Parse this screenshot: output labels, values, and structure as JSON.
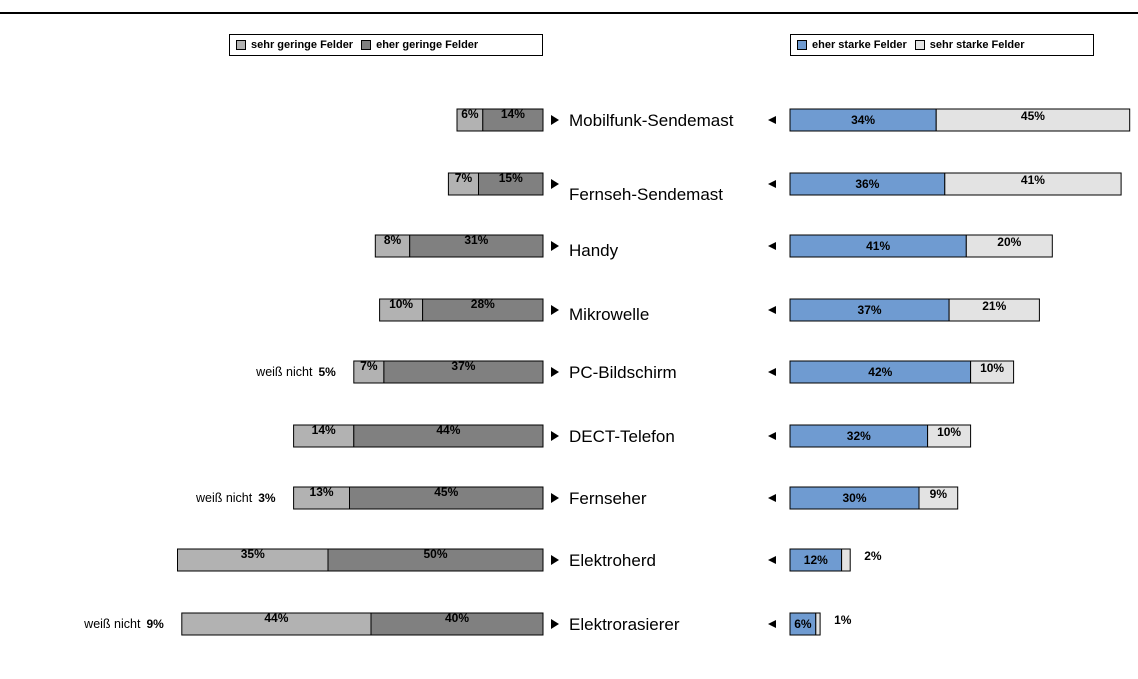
{
  "chart_data": {
    "type": "bar",
    "orientation": "horizontal",
    "layout": "diverging",
    "categories": [
      "Mobilfunk-Sendemast",
      "Fernseh-Sendemast",
      "Handy",
      "Mikrowelle",
      "PC-Bildschirm",
      "DECT-Telefon",
      "Fernseher",
      "Elektroherd",
      "Elektrorasierer"
    ],
    "value_labels": {
      "sehr_gering": [
        "6%",
        "7%",
        "8%",
        "10%",
        "7%",
        "14%",
        "13%",
        "35%",
        "44%"
      ],
      "eher_gering": [
        "14%",
        "15%",
        "31%",
        "28%",
        "37%",
        "44%",
        "45%",
        "50%",
        "40%"
      ],
      "eher_stark": [
        "34%",
        "36%",
        "41%",
        "37%",
        "42%",
        "32%",
        "30%",
        "12%",
        "6%"
      ],
      "sehr_stark": [
        "45%",
        "41%",
        "20%",
        "21%",
        "10%",
        "10%",
        "9%",
        "2%",
        "1%"
      ]
    },
    "series": [
      {
        "name": "sehr geringe Felder",
        "side": "left",
        "color": "#b2b2b2",
        "values": [
          6,
          7,
          8,
          10,
          7,
          14,
          13,
          35,
          44
        ]
      },
      {
        "name": "eher geringe Felder",
        "side": "left",
        "color": "#808080",
        "values": [
          14,
          15,
          31,
          28,
          37,
          44,
          45,
          50,
          40
        ]
      },
      {
        "name": "eher starke Felder",
        "side": "right",
        "color": "#6f9bd1",
        "values": [
          34,
          36,
          41,
          37,
          42,
          32,
          30,
          12,
          6
        ]
      },
      {
        "name": "sehr starke Felder",
        "side": "right",
        "color": "#e3e3e3",
        "values": [
          45,
          41,
          20,
          21,
          10,
          10,
          9,
          2,
          1
        ]
      }
    ],
    "weiss_nicht": {
      "label": "weiß nicht",
      "categories": [
        "PC-Bildschirm",
        "Fernseher",
        "Elektrorasierer"
      ],
      "values": [
        "5%",
        "3%",
        "9%"
      ]
    },
    "legend_left": [
      "sehr geringe Felder",
      "eher geringe Felder"
    ],
    "legend_right": [
      "eher starke Felder",
      "sehr starke Felder"
    ],
    "title": "",
    "xlabel": "",
    "ylabel": ""
  }
}
